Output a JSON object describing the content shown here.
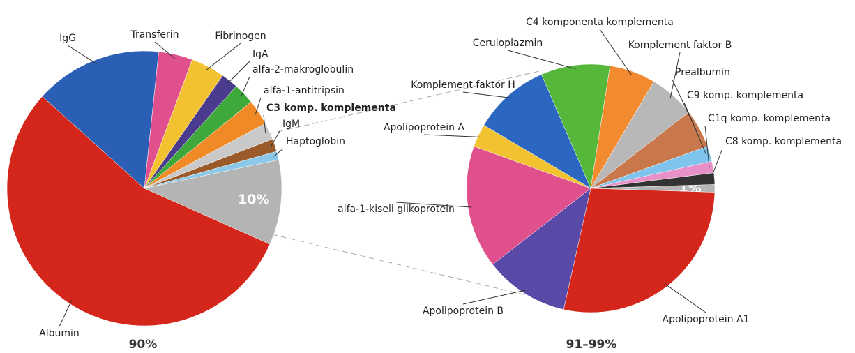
{
  "chart_data": [
    {
      "type": "pie",
      "caption": "90%",
      "categories": [
        null,
        "Albumin",
        "IgG",
        "Transferin",
        "Fibrinogen",
        "IgA",
        "alfa-2-makroglobulin",
        "alfa-1-antitripsin",
        "C3 komp. komplementa",
        "IgM",
        "Haptoglobin"
      ],
      "values": [
        10,
        55,
        15,
        4,
        4,
        2,
        2.5,
        3,
        2,
        1.5,
        1
      ],
      "value_labels": [
        "10%",
        null,
        null,
        null,
        null,
        null,
        null,
        null,
        null,
        null,
        null
      ],
      "colors": [
        "#b4b4b4",
        "#d4261a",
        "#2b5fb6",
        "#e0508c",
        "#f2c230",
        "#4b3b8e",
        "#3fa83a",
        "#f08a26",
        "#c9c9c9",
        "#9a5a2a",
        "#8cc8e8"
      ]
    },
    {
      "type": "pie",
      "caption": "91–99%",
      "categories": [
        null,
        "Apolipoprotein A1",
        "Apolipoprotein B",
        "alfa-1-kiseli glikoprotein",
        "Apolipoprotein A",
        "Komplement faktor H",
        "Ceruloplazmin",
        "C4 komponenta komplementa",
        "Komplement faktor B",
        "Prealbumin",
        "C9 komp. komplementa",
        "C1q komp. komplementa",
        "C8 komp. komplementa"
      ],
      "values": [
        1,
        28,
        11,
        16,
        3,
        10,
        9,
        6,
        6,
        5,
        2,
        1.5,
        1.5
      ],
      "value_labels": [
        "1%",
        null,
        null,
        null,
        null,
        null,
        null,
        null,
        null,
        null,
        null,
        null,
        null
      ],
      "colors": [
        "#b4b4b4",
        "#d4261a",
        "#5a4aa8",
        "#e0508c",
        "#f2c230",
        "#2b66c0",
        "#56b83a",
        "#f28a30",
        "#b8b8b8",
        "#c8784a",
        "#7fc4ec",
        "#e890c8",
        "#333333"
      ]
    }
  ]
}
